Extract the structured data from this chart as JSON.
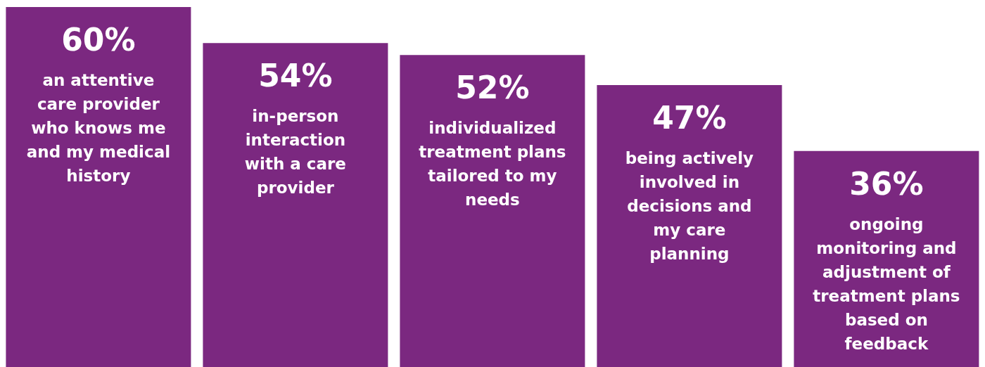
{
  "chart_data": {
    "type": "bar",
    "categories": [
      "an attentive care provider who knows me and my medical history",
      "in-person interaction with a care provider",
      "individualized treatment plans tailored to my needs",
      "being actively involved in decisions and my care planning",
      "ongoing monitoring and adjustment of treatment plans based on feedback"
    ],
    "values": [
      60,
      54,
      52,
      47,
      36
    ],
    "value_labels": [
      "60%",
      "54%",
      "52%",
      "47%",
      "36%"
    ],
    "color": "#7b2880"
  }
}
